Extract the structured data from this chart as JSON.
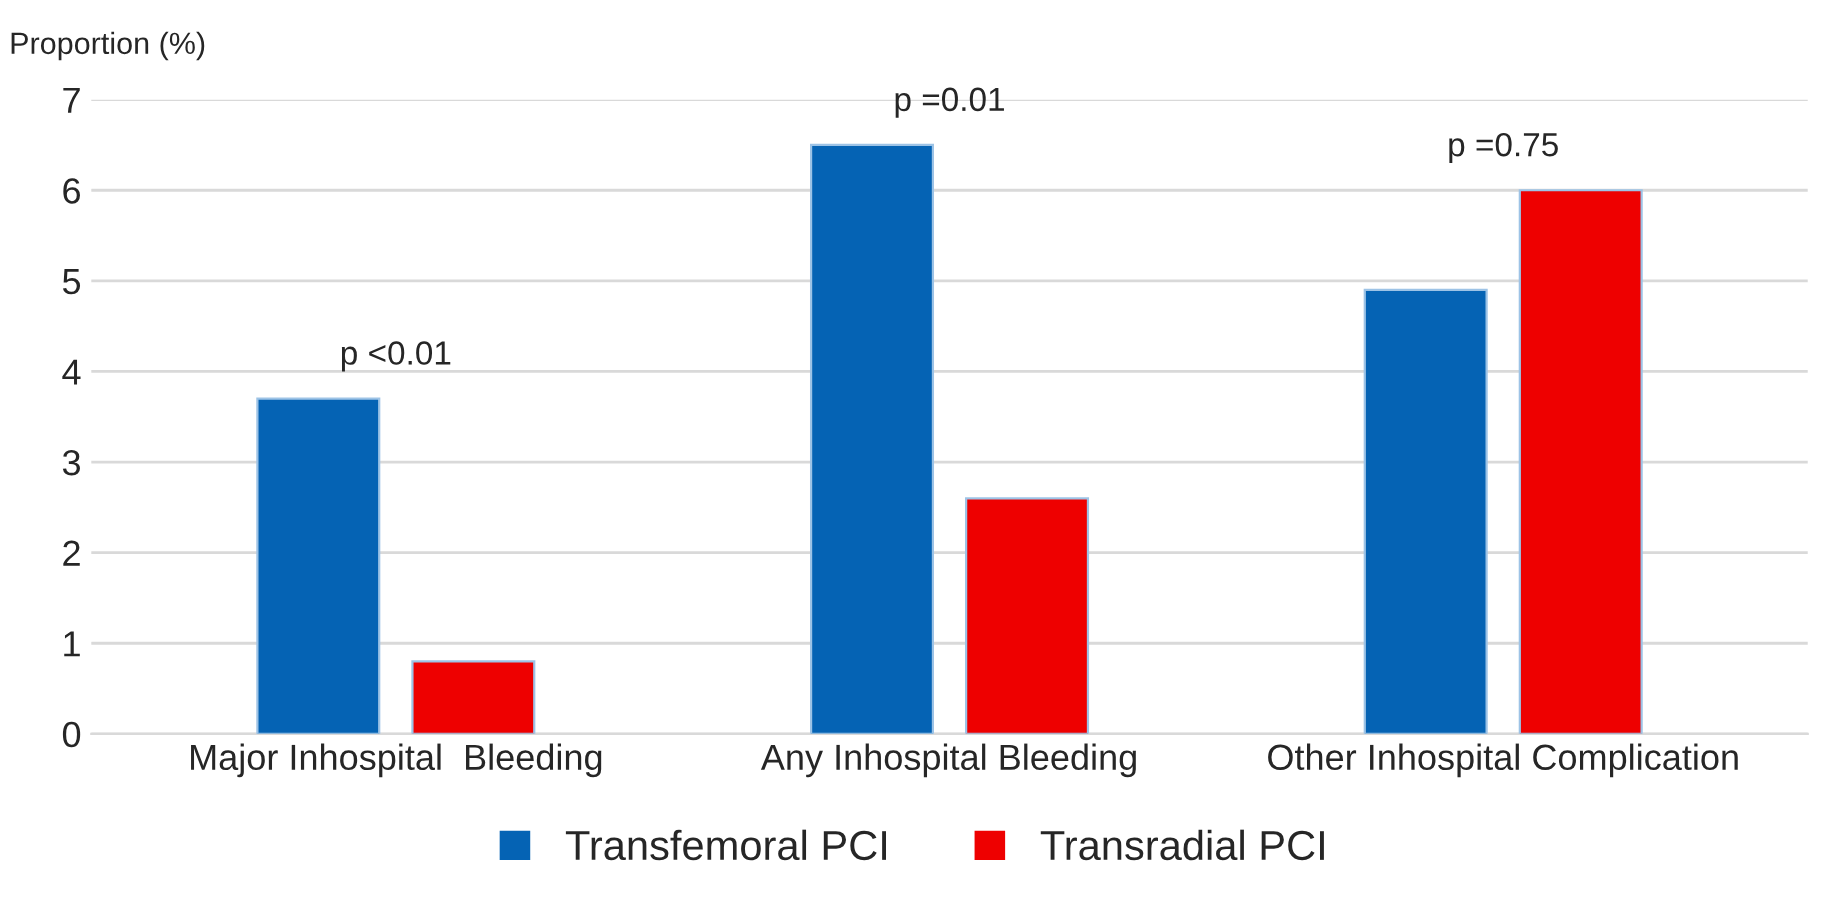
{
  "chart_data": {
    "type": "bar",
    "categories": [
      "Major Inhospital  Bleeding",
      "Any Inhospital Bleeding",
      "Other Inhospital Complication"
    ],
    "series": [
      {
        "name": "Transfemoral PCI",
        "color": "#0563b4",
        "values": [
          3.7,
          6.5,
          4.9
        ]
      },
      {
        "name": "Transradial PCI",
        "color": "#ee0000",
        "values": [
          0.8,
          2.6,
          6.0
        ]
      }
    ],
    "ylabel": "Proportion (%)",
    "ylim": [
      0,
      7
    ],
    "yticks": [
      0,
      1,
      2,
      3,
      4,
      5,
      6,
      7
    ],
    "grid": "y",
    "legend": "bottom",
    "annotations": [
      "p <0.01",
      "p =0.01",
      "p =0.75"
    ]
  }
}
